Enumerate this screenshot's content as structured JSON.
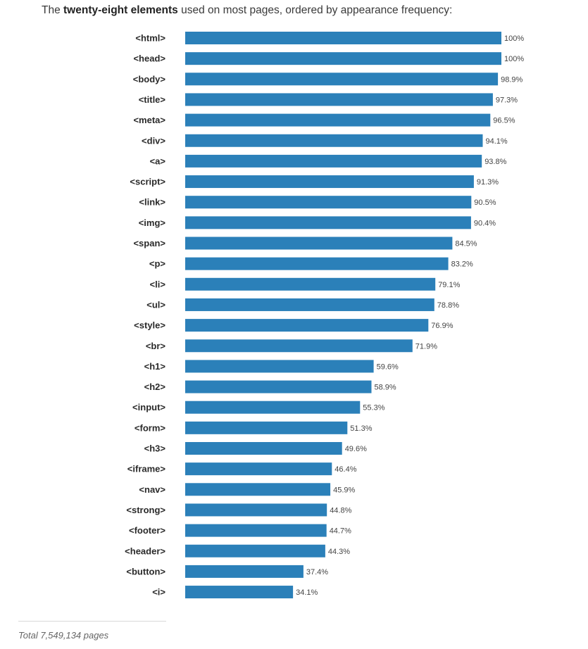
{
  "header": {
    "title_prefix": "The ",
    "title_bold": "twenty-eight elements",
    "title_suffix": " used on most pages, ordered by appearance frequency:"
  },
  "chart_data": {
    "type": "bar",
    "orientation": "horizontal",
    "categories": [
      "<html>",
      "<head>",
      "<body>",
      "<title>",
      "<meta>",
      "<div>",
      "<a>",
      "<script>",
      "<link>",
      "<img>",
      "<span>",
      "<p>",
      "<li>",
      "<ul>",
      "<style>",
      "<br>",
      "<h1>",
      "<h2>",
      "<input>",
      "<form>",
      "<h3>",
      "<iframe>",
      "<nav>",
      "<strong>",
      "<footer>",
      "<header>",
      "<button>",
      "<i>"
    ],
    "values": [
      100,
      100,
      98.9,
      97.3,
      96.5,
      94.1,
      93.8,
      91.3,
      90.5,
      90.4,
      84.5,
      83.2,
      79.1,
      78.8,
      76.9,
      71.9,
      59.6,
      58.9,
      55.3,
      51.3,
      49.6,
      46.4,
      45.9,
      44.8,
      44.7,
      44.3,
      37.4,
      34.1
    ],
    "labels": [
      "100%",
      "100%",
      "98.9%",
      "97.3%",
      "96.5%",
      "94.1%",
      "93.8%",
      "91.3%",
      "90.5%",
      "90.4%",
      "84.5%",
      "83.2%",
      "79.1%",
      "78.8%",
      "76.9%",
      "71.9%",
      "59.6%",
      "58.9%",
      "55.3%",
      "51.3%",
      "49.6%",
      "46.4%",
      "45.9%",
      "44.8%",
      "44.7%",
      "44.3%",
      "37.4%",
      "34.1%"
    ],
    "unit": "%",
    "xlim": [
      0,
      100
    ],
    "grid": false,
    "bar_color": "#2b80b9"
  },
  "footer": {
    "total": "Total 7,549,134 pages"
  }
}
